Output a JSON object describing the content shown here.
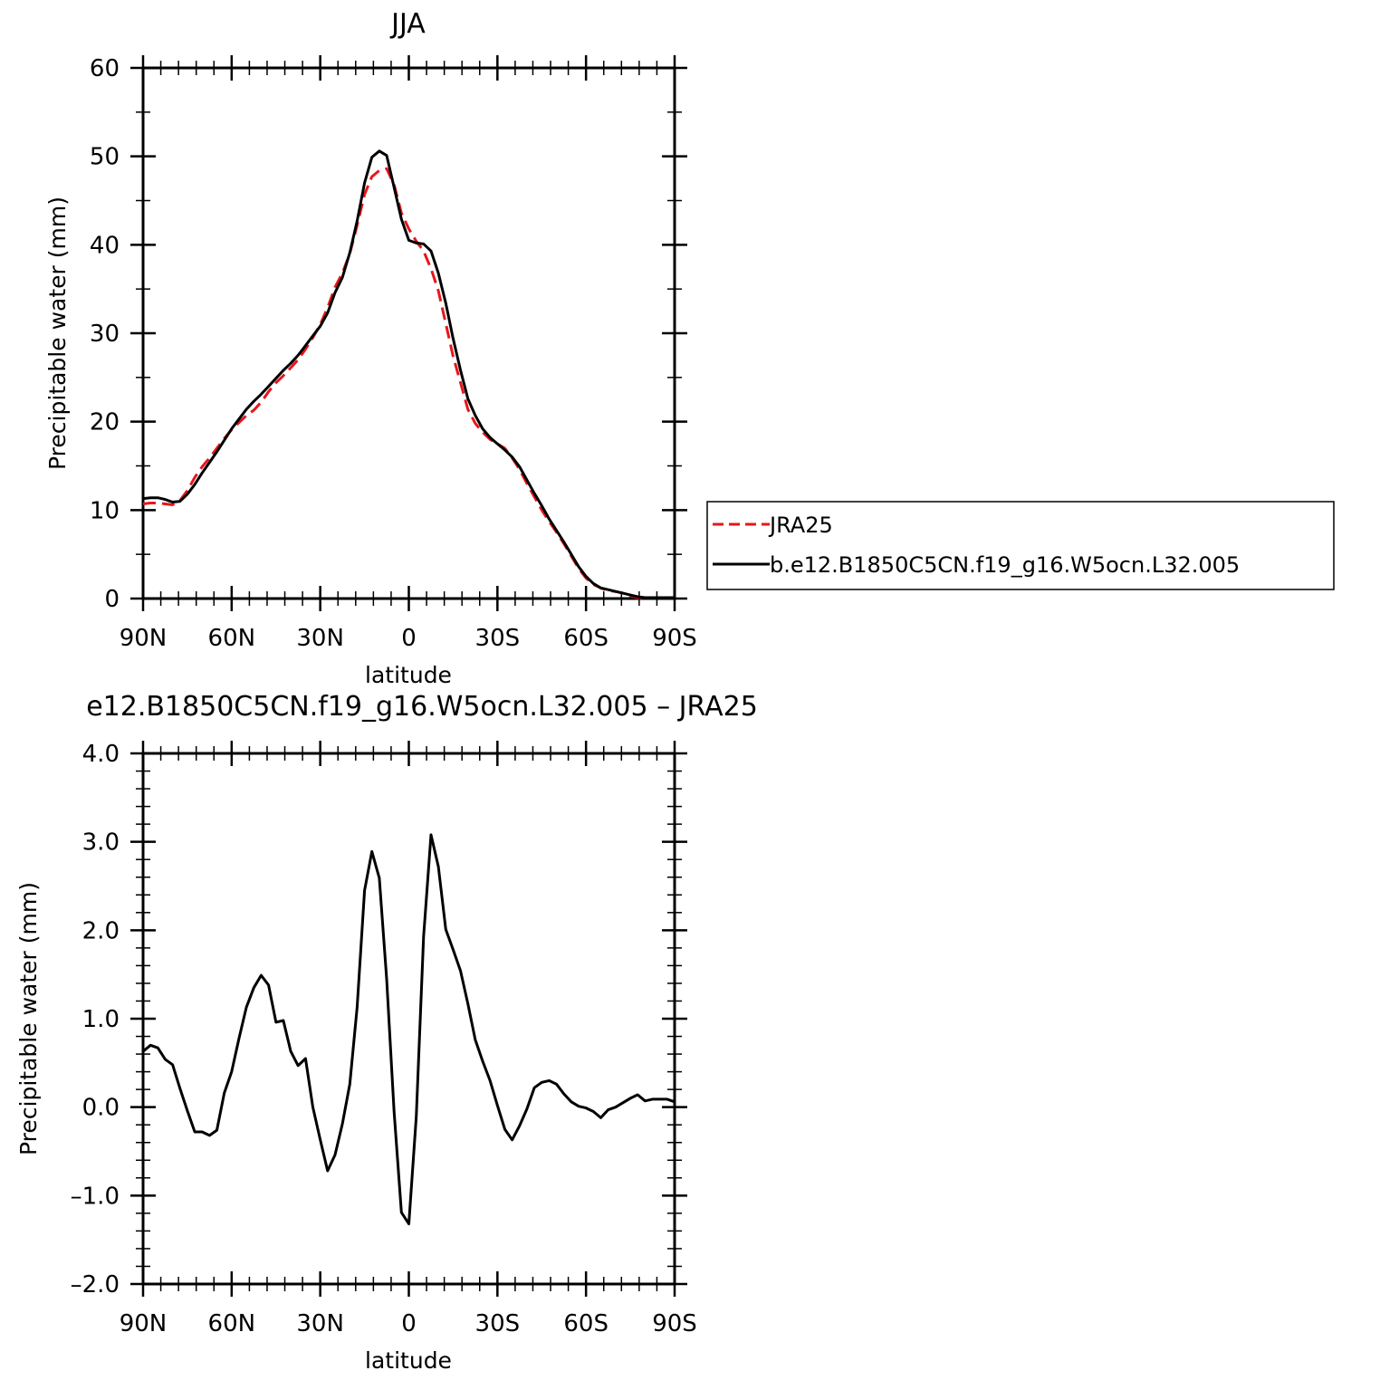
{
  "chart_data": [
    {
      "type": "line",
      "title": "JJA",
      "xlabel": "latitude",
      "ylabel": "Precipitable water (mm)",
      "xlim": [
        90,
        -90
      ],
      "ylim": [
        0,
        60
      ],
      "xticks": [
        90,
        60,
        30,
        0,
        -30,
        -60,
        -90
      ],
      "xtick_labels": [
        "90N",
        "60N",
        "30N",
        "0",
        "30S",
        "60S",
        "90S"
      ],
      "yticks": [
        0,
        10,
        20,
        30,
        40,
        50,
        60
      ],
      "ytick_labels": [
        "0",
        "10",
        "20",
        "30",
        "40",
        "50",
        "60"
      ],
      "grid": false,
      "legend_position": "right",
      "series": [
        {
          "name": "JRA25",
          "color": "#e8161c",
          "dash": "dashed",
          "x": [
            90,
            87.5,
            85,
            82.5,
            80,
            77.5,
            75,
            72.5,
            70,
            67.5,
            65,
            62.5,
            60,
            57.5,
            55,
            52.5,
            50,
            47.5,
            45,
            42.5,
            40,
            37.5,
            35,
            32.5,
            30,
            27.5,
            25,
            22.5,
            20,
            17.5,
            15,
            12.5,
            10,
            7.5,
            5,
            2.5,
            0,
            -2.5,
            -5,
            -7.5,
            -10,
            -12.5,
            -15,
            -17.5,
            -20,
            -22.5,
            -25,
            -27.5,
            -30,
            -32.5,
            -35,
            -37.5,
            -40,
            -42.5,
            -45,
            -47.5,
            -50,
            -52.5,
            -55,
            -57.5,
            -60,
            -62.5,
            -65,
            -67.5,
            -70,
            -72.5,
            -75,
            -77.5,
            -80,
            -82.5,
            -85,
            -87.5,
            -90
          ],
          "y": [
            10.7,
            10.8,
            10.8,
            10.7,
            10.6,
            11.1,
            12.2,
            13.7,
            14.9,
            15.9,
            17.0,
            18.1,
            19.1,
            19.9,
            20.7,
            21.3,
            22.2,
            23.4,
            24.4,
            25.2,
            26.1,
            27.0,
            28.2,
            29.5,
            31.0,
            32.9,
            35.2,
            36.8,
            39.0,
            42.2,
            45.7,
            47.7,
            48.4,
            48.6,
            46.8,
            43.6,
            41.8,
            40.4,
            39.3,
            37.3,
            34.8,
            31.1,
            27.4,
            24.4,
            21.4,
            19.8,
            18.8,
            18.0,
            17.5,
            17.0,
            15.9,
            14.6,
            13.0,
            11.5,
            10.0,
            8.7,
            7.5,
            6.2,
            4.8,
            3.4,
            2.3,
            1.6,
            1.2,
            0.9,
            0.8,
            0.6,
            0.3,
            0.1,
            0.1,
            0.1,
            0.1,
            0.1,
            0.1
          ]
        },
        {
          "name": "b.e12.B1850C5CN.f19_g16.W5ocn.L32.005",
          "color": "#000000",
          "dash": "solid",
          "x": [
            90,
            87.5,
            85,
            82.5,
            80,
            77.5,
            75,
            72.5,
            70,
            67.5,
            65,
            62.5,
            60,
            57.5,
            55,
            52.5,
            50,
            47.5,
            45,
            42.5,
            40,
            37.5,
            35,
            32.5,
            30,
            27.5,
            25,
            22.5,
            20,
            17.5,
            15,
            12.5,
            10,
            7.5,
            5,
            2.5,
            0,
            -2.5,
            -5,
            -7.5,
            -10,
            -12.5,
            -15,
            -17.5,
            -20,
            -22.5,
            -25,
            -27.5,
            -30,
            -32.5,
            -35,
            -37.5,
            -40,
            -42.5,
            -45,
            -47.5,
            -50,
            -52.5,
            -55,
            -57.5,
            -60,
            -62.5,
            -65,
            -67.5,
            -70,
            -72.5,
            -75,
            -77.5,
            -80,
            -82.5,
            -85,
            -87.5,
            -90
          ],
          "y": [
            11.3,
            11.4,
            11.4,
            11.2,
            10.9,
            11.0,
            11.8,
            12.9,
            14.2,
            15.4,
            16.6,
            17.9,
            19.2,
            20.3,
            21.4,
            22.3,
            23.1,
            24.0,
            24.9,
            25.8,
            26.6,
            27.5,
            28.6,
            29.7,
            30.8,
            32.3,
            34.6,
            36.3,
            39.1,
            42.7,
            47.0,
            49.9,
            50.6,
            50.1,
            46.5,
            42.9,
            40.5,
            40.2,
            40.1,
            39.3,
            36.8,
            33.4,
            29.4,
            25.8,
            22.6,
            20.7,
            19.2,
            18.2,
            17.5,
            16.8,
            16.0,
            14.9,
            13.4,
            11.9,
            10.5,
            9.0,
            7.7,
            6.4,
            5.0,
            3.6,
            2.5,
            1.7,
            1.2,
            1.0,
            0.8,
            0.6,
            0.4,
            0.2,
            0.1,
            0.1,
            0.1,
            0.1,
            0.1
          ]
        }
      ]
    },
    {
      "type": "line",
      "title": "e12.B1850C5CN.f19_g16.W5ocn.L32.005 – JRA25",
      "xlabel": "latitude",
      "ylabel": "Precipitable water (mm)",
      "xlim": [
        90,
        -90
      ],
      "ylim": [
        -2.0,
        4.0
      ],
      "xticks": [
        90,
        60,
        30,
        0,
        -30,
        -60,
        -90
      ],
      "xtick_labels": [
        "90N",
        "60N",
        "30N",
        "0",
        "30S",
        "60S",
        "90S"
      ],
      "yticks": [
        -2.0,
        -1.0,
        0.0,
        1.0,
        2.0,
        3.0,
        4.0
      ],
      "ytick_labels": [
        "–2.0",
        "–1.0",
        "0.0",
        "1.0",
        "2.0",
        "3.0",
        "4.0"
      ],
      "grid": false,
      "series": [
        {
          "color": "#000000",
          "dash": "solid",
          "x": [
            90,
            87.5,
            85,
            82.5,
            80,
            77.5,
            75,
            72.5,
            70,
            67.5,
            65,
            62.5,
            60,
            57.5,
            55,
            52.5,
            50,
            47.5,
            45,
            42.5,
            40,
            37.5,
            35,
            32.5,
            30,
            27.5,
            25,
            22.5,
            20,
            17.5,
            15,
            12.5,
            10,
            7.5,
            5,
            2.5,
            0,
            -2.5,
            -5,
            -7.5,
            -10,
            -12.5,
            -15,
            -17.5,
            -20,
            -22.5,
            -25,
            -27.5,
            -30,
            -32.5,
            -35,
            -37.5,
            -40,
            -42.5,
            -45,
            -47.5,
            -50,
            -52.5,
            -55,
            -57.5,
            -60,
            -62.5,
            -65,
            -67.5,
            -70,
            -72.5,
            -75,
            -77.5,
            -80,
            -82.5,
            -85,
            -87.5,
            -90
          ],
          "y": [
            0.63,
            0.7,
            0.67,
            0.54,
            0.48,
            0.21,
            -0.04,
            -0.28,
            -0.28,
            -0.32,
            -0.26,
            0.16,
            0.4,
            0.78,
            1.13,
            1.35,
            1.49,
            1.38,
            0.96,
            0.98,
            0.63,
            0.47,
            0.55,
            0.0,
            -0.37,
            -0.72,
            -0.54,
            -0.19,
            0.26,
            1.13,
            2.45,
            2.89,
            2.59,
            1.45,
            -0.05,
            -1.19,
            -1.32,
            -0.11,
            1.93,
            3.08,
            2.72,
            2.01,
            1.78,
            1.54,
            1.17,
            0.76,
            0.52,
            0.3,
            0.02,
            -0.25,
            -0.37,
            -0.21,
            -0.02,
            0.22,
            0.28,
            0.3,
            0.26,
            0.15,
            0.06,
            0.01,
            -0.01,
            -0.05,
            -0.12,
            -0.03,
            0.0,
            0.05,
            0.1,
            0.14,
            0.07,
            0.09,
            0.09,
            0.09,
            0.06
          ]
        }
      ]
    }
  ]
}
